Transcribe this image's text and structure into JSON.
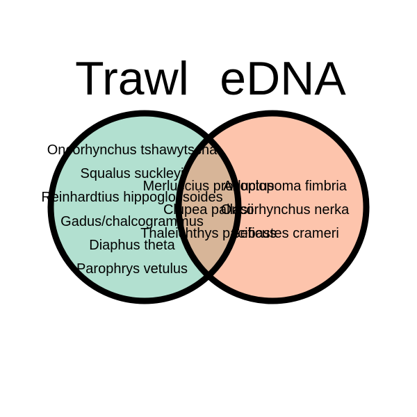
{
  "venn": {
    "colors": {
      "trawl_fill": "#b2e0d0",
      "edna_fill": "#fdc4ac",
      "overlap_fill": "#d7b598",
      "outline": "#000000"
    },
    "sets": {
      "trawl": {
        "title": "Trawl"
      },
      "edna": {
        "title": "eDNA"
      }
    },
    "regions": {
      "trawl_only": [
        "Oncorhynchus tshawytscha",
        "Squalus suckleyi",
        "Reinhardtius hippoglossoides",
        "Gadus/chalcogrammus",
        "Diaphus theta",
        "Parophrys vetulus"
      ],
      "both": [
        "Merluccius productus",
        "Clupea pallasii",
        "Thaleichthys pacificus"
      ],
      "edna_only": [
        "Anoplopoma fimbria",
        "Oncorhynchus nerka",
        "Sebastes crameri"
      ]
    }
  }
}
